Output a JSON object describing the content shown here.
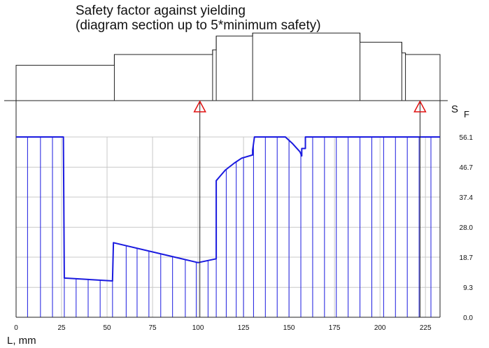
{
  "chart_data": {
    "type": "line",
    "title_lines": [
      "Safety factor against yielding",
      "(diagram section up to 5*minimum safety)"
    ],
    "xlabel": "L, mm",
    "ylabel_main": "S",
    "ylabel_sub": "F",
    "xlim": [
      0,
      233
    ],
    "ylim": [
      0,
      56.1
    ],
    "x_ticks": [
      0,
      25,
      50,
      75,
      100,
      125,
      150,
      175,
      200,
      225
    ],
    "y_ticks": [
      0.0,
      9.3,
      18.7,
      28.0,
      37.4,
      46.7,
      56.1
    ],
    "y_tick_labels": [
      "0.0",
      "9.3",
      "18.7",
      "28.0",
      "37.4",
      "46.7",
      "56.1"
    ],
    "grid": true,
    "series": [
      {
        "color": "#1a1adf",
        "x": [
          0,
          26,
          26.5,
          53,
          53,
          53.5,
          100,
          110,
          110,
          115,
          120,
          124,
          130,
          130,
          131,
          148,
          152,
          156,
          157,
          157,
          159,
          159,
          233
        ],
        "y": [
          56.1,
          56.1,
          12.2,
          11.3,
          11.7,
          23.2,
          17.0,
          18.2,
          42.5,
          45.8,
          48.0,
          49.5,
          50.5,
          52.0,
          56.1,
          56.1,
          54.0,
          51.5,
          50.2,
          52.5,
          52.5,
          56.1,
          56.1
        ]
      }
    ],
    "fill_lines_x": [
      0,
      6.3,
      13.4,
      20,
      26.5,
      33,
      39.6,
      46.2,
      53,
      60.5,
      66.5,
      73,
      79.5,
      86,
      93,
      99,
      105.5,
      110,
      115.5,
      121,
      125,
      130.5,
      137,
      143.5,
      150,
      156.5,
      163,
      169.5,
      176,
      182.5,
      189,
      195.5,
      202,
      208.5,
      215,
      221.5,
      228,
      233
    ],
    "critical_sections_x": [
      101,
      222
    ],
    "shaft_profile": [
      {
        "x0": 0,
        "x1": 54,
        "d": 46
      },
      {
        "x0": 54,
        "x1": 108,
        "d": 60
      },
      {
        "x0": 108,
        "x1": 110,
        "d": 66
      },
      {
        "x0": 110,
        "x1": 130,
        "d": 84
      },
      {
        "x0": 130,
        "x1": 189,
        "d": 88
      },
      {
        "x0": 189,
        "x1": 212,
        "d": 76
      },
      {
        "x0": 212,
        "x1": 214,
        "d": 62
      },
      {
        "x0": 214,
        "x1": 233,
        "d": 60
      }
    ]
  }
}
